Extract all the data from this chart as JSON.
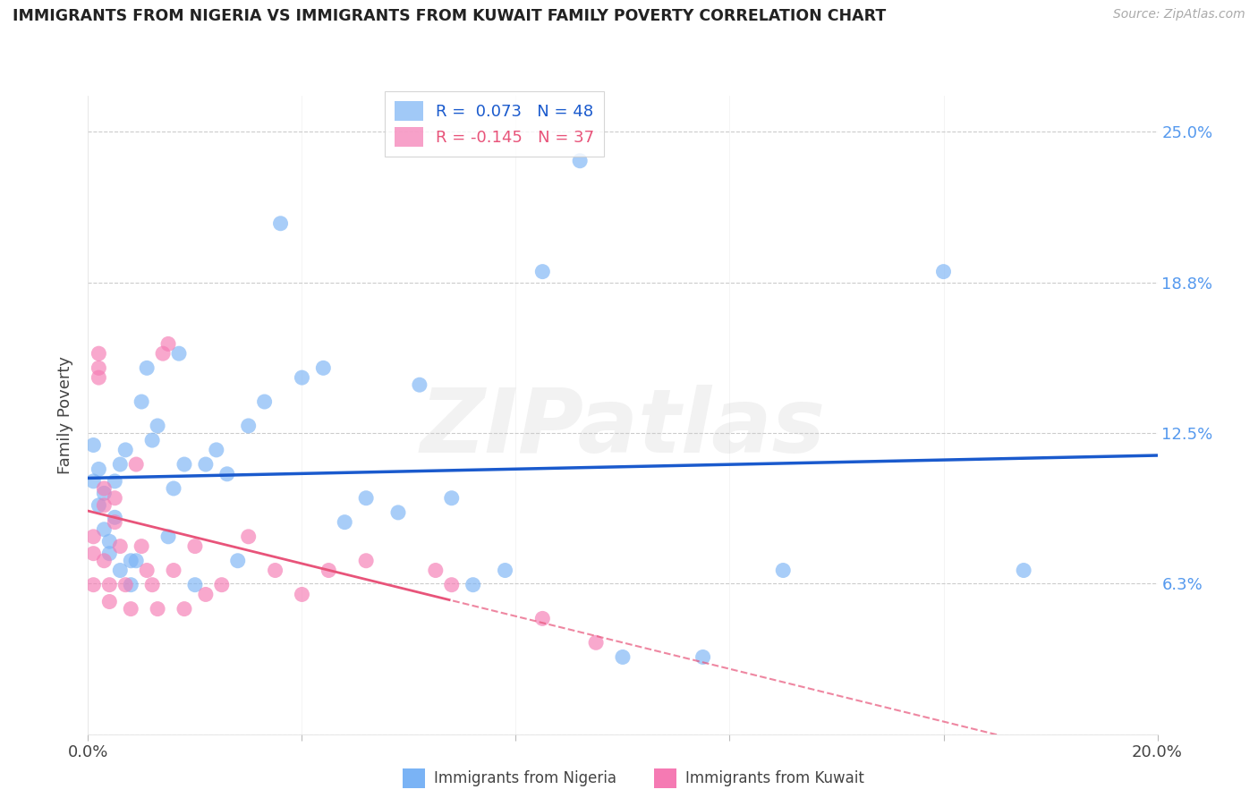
{
  "title": "IMMIGRANTS FROM NIGERIA VS IMMIGRANTS FROM KUWAIT FAMILY POVERTY CORRELATION CHART",
  "source": "Source: ZipAtlas.com",
  "xlabel_nigeria": "Immigrants from Nigeria",
  "xlabel_kuwait": "Immigrants from Kuwait",
  "ylabel": "Family Poverty",
  "xlim": [
    0.0,
    0.2
  ],
  "ylim": [
    0.0,
    0.265
  ],
  "yticks": [
    0.0,
    0.0625,
    0.125,
    0.1875,
    0.25
  ],
  "ytick_labels": [
    "",
    "6.3%",
    "12.5%",
    "18.8%",
    "25.0%"
  ],
  "xtick_labels": [
    "0.0%",
    "20.0%"
  ],
  "R_nigeria": 0.073,
  "N_nigeria": 48,
  "R_kuwait": -0.145,
  "N_kuwait": 37,
  "color_nigeria": "#7ab3f5",
  "color_kuwait": "#f57ab3",
  "color_nigeria_line": "#1a5acd",
  "color_kuwait_line": "#e8547a",
  "watermark": "ZIPatlas",
  "nigeria_x": [
    0.001,
    0.001,
    0.002,
    0.002,
    0.003,
    0.003,
    0.004,
    0.004,
    0.005,
    0.005,
    0.006,
    0.006,
    0.007,
    0.008,
    0.008,
    0.009,
    0.01,
    0.011,
    0.012,
    0.013,
    0.015,
    0.016,
    0.017,
    0.018,
    0.02,
    0.022,
    0.024,
    0.026,
    0.028,
    0.03,
    0.033,
    0.036,
    0.04,
    0.044,
    0.048,
    0.052,
    0.058,
    0.062,
    0.068,
    0.072,
    0.078,
    0.085,
    0.092,
    0.1,
    0.115,
    0.13,
    0.16,
    0.175
  ],
  "nigeria_y": [
    0.12,
    0.105,
    0.11,
    0.095,
    0.1,
    0.085,
    0.08,
    0.075,
    0.105,
    0.09,
    0.112,
    0.068,
    0.118,
    0.062,
    0.072,
    0.072,
    0.138,
    0.152,
    0.122,
    0.128,
    0.082,
    0.102,
    0.158,
    0.112,
    0.062,
    0.112,
    0.118,
    0.108,
    0.072,
    0.128,
    0.138,
    0.212,
    0.148,
    0.152,
    0.088,
    0.098,
    0.092,
    0.145,
    0.098,
    0.062,
    0.068,
    0.192,
    0.238,
    0.032,
    0.032,
    0.068,
    0.192,
    0.068
  ],
  "kuwait_x": [
    0.001,
    0.001,
    0.001,
    0.002,
    0.002,
    0.002,
    0.003,
    0.003,
    0.003,
    0.004,
    0.004,
    0.005,
    0.005,
    0.006,
    0.007,
    0.008,
    0.009,
    0.01,
    0.011,
    0.012,
    0.013,
    0.014,
    0.015,
    0.016,
    0.018,
    0.02,
    0.022,
    0.025,
    0.03,
    0.035,
    0.04,
    0.045,
    0.052,
    0.065,
    0.068,
    0.085,
    0.095
  ],
  "kuwait_y": [
    0.082,
    0.075,
    0.062,
    0.158,
    0.152,
    0.148,
    0.102,
    0.095,
    0.072,
    0.062,
    0.055,
    0.098,
    0.088,
    0.078,
    0.062,
    0.052,
    0.112,
    0.078,
    0.068,
    0.062,
    0.052,
    0.158,
    0.162,
    0.068,
    0.052,
    0.078,
    0.058,
    0.062,
    0.082,
    0.068,
    0.058,
    0.068,
    0.072,
    0.068,
    0.062,
    0.048,
    0.038
  ]
}
